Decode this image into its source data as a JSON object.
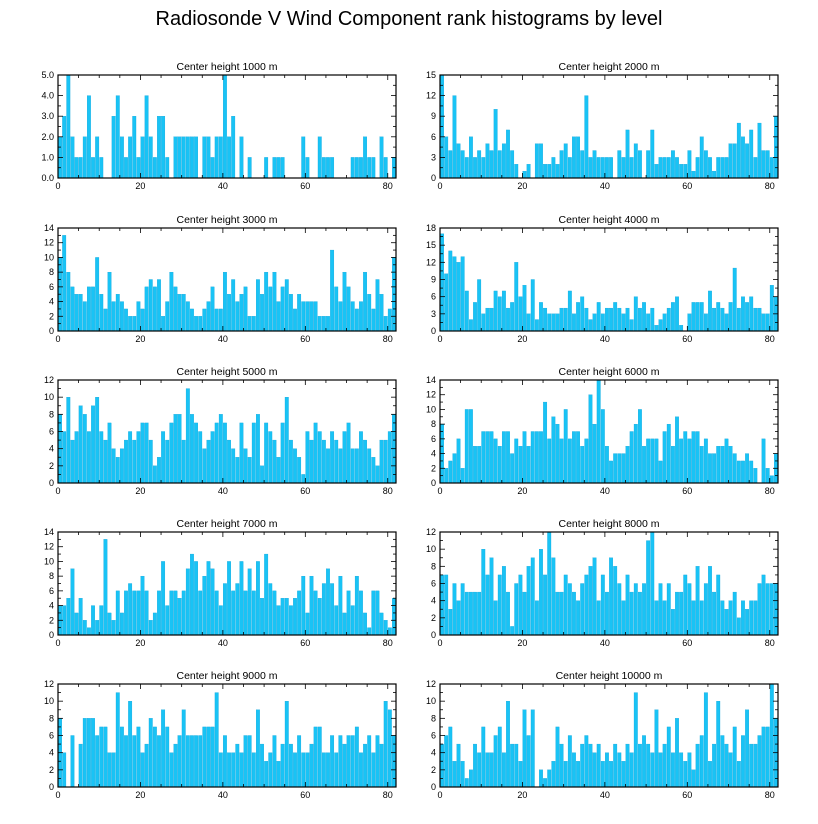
{
  "title": "Radiosonde V Wind Component rank histograms by level",
  "colors": {
    "bar": "#19c3f5",
    "bar_edge": "#0aa0d8",
    "axis": "#000000"
  },
  "chart_data": [
    {
      "type": "bar",
      "title": "Center height 1000 m",
      "xlabel": "",
      "ylabel": "",
      "xlim": [
        0,
        82
      ],
      "ylim": [
        0,
        5
      ],
      "xticks": [
        0,
        20,
        40,
        60,
        80
      ],
      "yticks": [
        0,
        1,
        2,
        3,
        4,
        5
      ],
      "ytick_labels": [
        "0.0",
        "1.0",
        "2.0",
        "3.0",
        "4.0",
        "5.0"
      ],
      "values": [
        2,
        3,
        5,
        2,
        1,
        1,
        2,
        4,
        1,
        2,
        1,
        0,
        0,
        3,
        4,
        2,
        1,
        2,
        3,
        1,
        2,
        4,
        2,
        1,
        3,
        3,
        1,
        0,
        2,
        2,
        2,
        2,
        2,
        2,
        0,
        2,
        2,
        1,
        2,
        2,
        5,
        2,
        3,
        0,
        2,
        0,
        1,
        0,
        0,
        0,
        1,
        0,
        1,
        1,
        1,
        0,
        0,
        0,
        0,
        2,
        1,
        0,
        0,
        2,
        1,
        1,
        1,
        0,
        0,
        0,
        0,
        1,
        1,
        1,
        2,
        1,
        1,
        0,
        2,
        1,
        0,
        1
      ]
    },
    {
      "type": "bar",
      "title": "Center height 2000 m",
      "xlabel": "",
      "ylabel": "",
      "xlim": [
        0,
        82
      ],
      "ylim": [
        0,
        15
      ],
      "xticks": [
        0,
        20,
        40,
        60,
        80
      ],
      "yticks": [
        0,
        3,
        6,
        9,
        12,
        15
      ],
      "ytick_labels": [
        "0",
        "3",
        "6",
        "9",
        "12",
        "15"
      ],
      "values": [
        15,
        6,
        4,
        12,
        5,
        4,
        3,
        6,
        3,
        4,
        3,
        5,
        4,
        10,
        4,
        5,
        7,
        4,
        2,
        0,
        1,
        2,
        0,
        5,
        5,
        2,
        2,
        3,
        2,
        4,
        5,
        3,
        6,
        6,
        4,
        12,
        3,
        4,
        3,
        3,
        3,
        3,
        0,
        4,
        3,
        7,
        3,
        5,
        4,
        0,
        4,
        7,
        2,
        3,
        3,
        3,
        4,
        3,
        2,
        2,
        4,
        1,
        3,
        6,
        4,
        3,
        1,
        3,
        3,
        3,
        5,
        5,
        8,
        6,
        5,
        7,
        3,
        8,
        4,
        4,
        3,
        9
      ]
    },
    {
      "type": "bar",
      "title": "Center height 3000 m",
      "xlabel": "",
      "ylabel": "",
      "xlim": [
        0,
        82
      ],
      "ylim": [
        0,
        14
      ],
      "xticks": [
        0,
        20,
        40,
        60,
        80
      ],
      "yticks": [
        0,
        2,
        4,
        6,
        8,
        10,
        12,
        14
      ],
      "ytick_labels": [
        "0",
        "2",
        "4",
        "6",
        "8",
        "10",
        "12",
        "14"
      ],
      "values": [
        10,
        13,
        8,
        6,
        5,
        5,
        4,
        6,
        6,
        10,
        5,
        3,
        8,
        4,
        5,
        4,
        3,
        2,
        2,
        4,
        3,
        6,
        7,
        6,
        7,
        2,
        4,
        8,
        6,
        5,
        5,
        4,
        3,
        2,
        2,
        3,
        4,
        6,
        3,
        3,
        8,
        5,
        7,
        4,
        5,
        6,
        2,
        2,
        7,
        5,
        8,
        6,
        8,
        4,
        6,
        7,
        5,
        3,
        5,
        4,
        4,
        4,
        4,
        2,
        2,
        2,
        11,
        6,
        4,
        8,
        6,
        4,
        3,
        4,
        8,
        5,
        3,
        7,
        5,
        2,
        3,
        10
      ]
    },
    {
      "type": "bar",
      "title": "Center height 4000 m",
      "xlabel": "",
      "ylabel": "",
      "xlim": [
        0,
        82
      ],
      "ylim": [
        0,
        18
      ],
      "xticks": [
        0,
        20,
        40,
        60,
        80
      ],
      "yticks": [
        0,
        3,
        6,
        9,
        12,
        15,
        18
      ],
      "ytick_labels": [
        "0",
        "3",
        "6",
        "9",
        "12",
        "15",
        "18"
      ],
      "values": [
        17,
        10,
        14,
        13,
        12,
        13,
        7,
        2,
        5,
        9,
        3,
        4,
        4,
        7,
        6,
        7,
        4,
        5,
        12,
        6,
        8,
        3,
        9,
        2,
        5,
        4,
        3,
        3,
        3,
        4,
        4,
        7,
        3,
        5,
        6,
        4,
        2,
        3,
        5,
        3,
        4,
        4,
        5,
        4,
        3,
        4,
        2,
        6,
        4,
        5,
        3,
        4,
        1,
        2,
        3,
        4,
        5,
        6,
        1,
        0,
        3,
        5,
        5,
        5,
        3,
        7,
        4,
        5,
        4,
        3,
        5,
        11,
        4,
        6,
        5,
        6,
        4,
        4,
        3,
        3,
        8,
        6
      ]
    },
    {
      "type": "bar",
      "title": "Center height 5000 m",
      "xlabel": "",
      "ylabel": "",
      "xlim": [
        0,
        82
      ],
      "ylim": [
        0,
        12
      ],
      "xticks": [
        0,
        20,
        40,
        60,
        80
      ],
      "yticks": [
        0,
        2,
        4,
        6,
        8,
        10,
        12
      ],
      "ytick_labels": [
        "0",
        "2",
        "4",
        "6",
        "8",
        "10",
        "12"
      ],
      "values": [
        8,
        6,
        10,
        5,
        6,
        9,
        8,
        6,
        9,
        10,
        6,
        5,
        7,
        4,
        3,
        4,
        5,
        6,
        5,
        6,
        7,
        7,
        5,
        2,
        3,
        6,
        5,
        7,
        8,
        8,
        5,
        11,
        8,
        7,
        6,
        4,
        5,
        6,
        7,
        8,
        7,
        5,
        4,
        3,
        7,
        4,
        3,
        7,
        8,
        2,
        7,
        6,
        5,
        3,
        7,
        10,
        5,
        4,
        3,
        1,
        6,
        5,
        7,
        6,
        5,
        4,
        6,
        5,
        4,
        6,
        7,
        4,
        4,
        6,
        5,
        4,
        3,
        2,
        5,
        5,
        6,
        8
      ]
    },
    {
      "type": "bar",
      "title": "Center height 6000 m",
      "xlabel": "",
      "ylabel": "",
      "xlim": [
        0,
        82
      ],
      "ylim": [
        0,
        14
      ],
      "xticks": [
        0,
        20,
        40,
        60,
        80
      ],
      "yticks": [
        0,
        2,
        4,
        6,
        8,
        10,
        12,
        14
      ],
      "ytick_labels": [
        "0",
        "2",
        "4",
        "6",
        "8",
        "10",
        "12",
        "14"
      ],
      "values": [
        8,
        2,
        3,
        4,
        6,
        2,
        10,
        10,
        5,
        5,
        7,
        7,
        7,
        6,
        5,
        7,
        7,
        4,
        6,
        5,
        7,
        5,
        7,
        7,
        7,
        11,
        6,
        9,
        8,
        6,
        10,
        6,
        7,
        7,
        5,
        6,
        12,
        8,
        14,
        10,
        5,
        3,
        4,
        4,
        4,
        5,
        7,
        8,
        10,
        5,
        6,
        6,
        6,
        3,
        7,
        8,
        5,
        9,
        6,
        7,
        6,
        7,
        7,
        5,
        6,
        4,
        4,
        5,
        5,
        6,
        5,
        4,
        3,
        3,
        4,
        3,
        2,
        0,
        6,
        2,
        1,
        4
      ]
    },
    {
      "type": "bar",
      "title": "Center height 7000 m",
      "xlabel": "",
      "ylabel": "",
      "xlim": [
        0,
        82
      ],
      "ylim": [
        0,
        14
      ],
      "xticks": [
        0,
        20,
        40,
        60,
        80
      ],
      "yticks": [
        0,
        2,
        4,
        6,
        8,
        10,
        12,
        14
      ],
      "ytick_labels": [
        "0",
        "2",
        "4",
        "6",
        "8",
        "10",
        "12",
        "14"
      ],
      "values": [
        4,
        4,
        5,
        9,
        3,
        5,
        2,
        1,
        4,
        2,
        4,
        13,
        3,
        2,
        6,
        3,
        6,
        7,
        6,
        6,
        8,
        6,
        2,
        3,
        6,
        10,
        4,
        6,
        6,
        5,
        6,
        9,
        11,
        10,
        6,
        8,
        10,
        9,
        6,
        4,
        7,
        10,
        6,
        7,
        10,
        6,
        9,
        6,
        10,
        5,
        11,
        7,
        6,
        4,
        5,
        5,
        4,
        5,
        6,
        8,
        3,
        8,
        6,
        5,
        7,
        9,
        7,
        4,
        8,
        3,
        6,
        4,
        8,
        6,
        3,
        1,
        6,
        6,
        3,
        2,
        1,
        5
      ]
    },
    {
      "type": "bar",
      "title": "Center height 8000 m",
      "xlabel": "",
      "ylabel": "",
      "xlim": [
        0,
        82
      ],
      "ylim": [
        0,
        12
      ],
      "xticks": [
        0,
        20,
        40,
        60,
        80
      ],
      "yticks": [
        0,
        2,
        4,
        6,
        8,
        10,
        12
      ],
      "ytick_labels": [
        "0",
        "2",
        "4",
        "6",
        "8",
        "10",
        "12"
      ],
      "values": [
        7,
        7,
        3,
        6,
        4,
        6,
        5,
        5,
        5,
        5,
        10,
        7,
        9,
        4,
        7,
        8,
        5,
        1,
        6,
        7,
        5,
        8,
        9,
        4,
        10,
        7,
        12,
        9,
        5,
        5,
        7,
        6,
        5,
        4,
        6,
        7,
        8,
        9,
        4,
        7,
        5,
        9,
        8,
        6,
        4,
        7,
        5,
        6,
        5,
        6,
        11,
        12,
        4,
        6,
        4,
        6,
        3,
        5,
        5,
        7,
        6,
        4,
        8,
        4,
        6,
        8,
        5,
        7,
        4,
        3,
        4,
        5,
        2,
        4,
        3,
        4,
        4,
        6,
        7,
        6,
        6,
        6
      ]
    },
    {
      "type": "bar",
      "title": "Center height 9000 m",
      "xlabel": "",
      "ylabel": "",
      "xlim": [
        0,
        82
      ],
      "ylim": [
        0,
        12
      ],
      "xticks": [
        0,
        20,
        40,
        60,
        80
      ],
      "yticks": [
        0,
        2,
        4,
        6,
        8,
        10,
        12
      ],
      "ytick_labels": [
        "0",
        "2",
        "4",
        "6",
        "8",
        "10",
        "12"
      ],
      "values": [
        8,
        4,
        0,
        6,
        0,
        5,
        8,
        8,
        8,
        6,
        7,
        7,
        4,
        4,
        11,
        7,
        6,
        10,
        6,
        7,
        4,
        5,
        8,
        7,
        6,
        9,
        7,
        4,
        5,
        6,
        9,
        6,
        6,
        6,
        6,
        7,
        7,
        7,
        11,
        4,
        6,
        4,
        4,
        5,
        4,
        6,
        6,
        4,
        9,
        5,
        3,
        4,
        6,
        3,
        5,
        10,
        5,
        4,
        6,
        4,
        4,
        5,
        7,
        7,
        4,
        4,
        6,
        4,
        6,
        5,
        6,
        6,
        7,
        4,
        5,
        6,
        4,
        6,
        5,
        10,
        9,
        6
      ]
    },
    {
      "type": "bar",
      "title": "Center height 10000 m",
      "xlabel": "",
      "ylabel": "",
      "xlim": [
        0,
        82
      ],
      "ylim": [
        0,
        12
      ],
      "xticks": [
        0,
        20,
        40,
        60,
        80
      ],
      "yticks": [
        0,
        2,
        4,
        6,
        8,
        10,
        12
      ],
      "ytick_labels": [
        "0",
        "2",
        "4",
        "6",
        "8",
        "10",
        "12"
      ],
      "values": [
        5,
        6,
        7,
        3,
        5,
        3,
        1,
        2,
        5,
        4,
        7,
        4,
        4,
        6,
        7,
        4,
        10,
        5,
        5,
        3,
        9,
        6,
        9,
        0,
        2,
        1,
        2,
        3,
        7,
        5,
        3,
        6,
        4,
        3,
        5,
        6,
        5,
        4,
        5,
        3,
        4,
        3,
        5,
        4,
        3,
        5,
        4,
        11,
        5,
        6,
        5,
        4,
        9,
        4,
        5,
        7,
        4,
        8,
        4,
        3,
        4,
        2,
        5,
        6,
        11,
        3,
        5,
        10,
        6,
        5,
        4,
        7,
        3,
        6,
        9,
        5,
        5,
        6,
        7,
        7,
        12,
        8
      ]
    }
  ]
}
